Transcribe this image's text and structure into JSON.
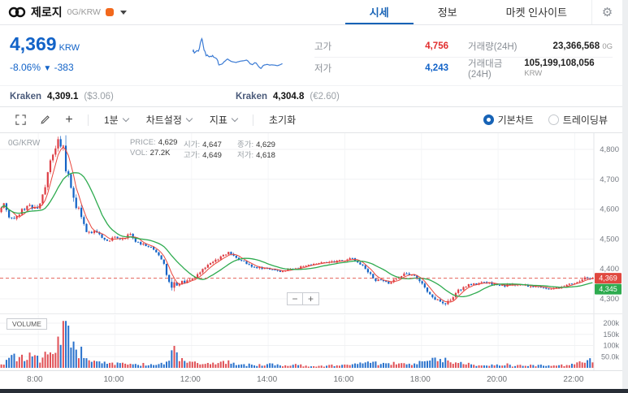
{
  "header": {
    "title": "제로지",
    "pair": "0G/KRW",
    "tabs": [
      {
        "label": "시세",
        "active": true
      },
      {
        "label": "정보",
        "active": false
      },
      {
        "label": "마켓 인사이트",
        "active": false
      }
    ]
  },
  "quote": {
    "price": "4,369",
    "currency": "KRW",
    "change_pct": "-8.06%",
    "change_dir": "▼",
    "change_abs": "-383",
    "stats": {
      "high_label": "고가",
      "high": "4,756",
      "low_label": "저가",
      "low": "4,243",
      "vol_label": "거래량(24H)",
      "vol": "23,366,568",
      "vol_unit": "0G",
      "amount_label": "거래대금(24H)",
      "amount": "105,199,108,056",
      "amount_unit": "KRW"
    },
    "references": [
      {
        "exchange": "Kraken",
        "price": "4,309.1",
        "note": "($3.06)"
      },
      {
        "exchange": "Kraken",
        "price": "4,304.8",
        "note": "(€2.60)"
      }
    ]
  },
  "toolbar": {
    "interval": "1분",
    "settings": "차트설정",
    "indicator": "지표",
    "reset": "초기화",
    "radio_basic": "기본차트",
    "radio_tradingview": "트레이딩뷰"
  },
  "chart": {
    "symbol": "0G/KRW",
    "legend": [
      {
        "label": "PRICE:",
        "value": "4,629"
      },
      {
        "label": "시가:",
        "value": "4,647"
      },
      {
        "label": "종가:",
        "value": "4,629"
      },
      {
        "label": "VOL:",
        "value": "27.2K"
      },
      {
        "label": "고가:",
        "value": "4,649"
      },
      {
        "label": "저가:",
        "value": "4,618"
      }
    ],
    "volume_title": "VOLUME",
    "price_tag": "4,369",
    "ma_tag": "4,345",
    "zoom_out": "−",
    "zoom_in": "+"
  },
  "colors": {
    "accent_blue": "#1763b6",
    "price_blue": "#1263c8",
    "high_red": "#e12d2d"
  },
  "chart_data": {
    "type": "candlestick",
    "pair": "0G/KRW",
    "interval": "1분",
    "last_price": 4369,
    "minutes_total": 930,
    "candle_count": 230,
    "seed": 42,
    "colors": {
      "up": "#dd3d44",
      "down": "#1363c6",
      "ma_fast": "#e8453c",
      "ma_slow": "#2eab4f"
    },
    "y_ticks": [
      {
        "label": "4,800",
        "value": 4800
      },
      {
        "label": "4,700",
        "value": 4700
      },
      {
        "label": "4,600",
        "value": 4600
      },
      {
        "label": "4,500",
        "value": 4500
      },
      {
        "label": "4,400",
        "value": 4400
      },
      {
        "label": "4,300",
        "value": 4300
      }
    ],
    "x_ticks": [
      {
        "label": "8:00",
        "minute": 60
      },
      {
        "label": "10:00",
        "minute": 180
      },
      {
        "label": "12:00",
        "minute": 300
      },
      {
        "label": "14:00",
        "minute": 420
      },
      {
        "label": "16:00",
        "minute": 540
      },
      {
        "label": "18:00",
        "minute": 660
      },
      {
        "label": "20:00",
        "minute": 780
      },
      {
        "label": "22:00",
        "minute": 900
      }
    ],
    "volume_ticks": [
      {
        "label": "200k",
        "value": 200000
      },
      {
        "label": "150k",
        "value": 150000
      },
      {
        "label": "100k",
        "value": 100000
      },
      {
        "label": "50.0k",
        "value": 50000
      }
    ],
    "price_waypoints": [
      [
        0,
        4590
      ],
      [
        8,
        4620
      ],
      [
        18,
        4565
      ],
      [
        30,
        4585
      ],
      [
        45,
        4610
      ],
      [
        60,
        4600
      ],
      [
        70,
        4650
      ],
      [
        80,
        4750
      ],
      [
        88,
        4800
      ],
      [
        95,
        4830
      ],
      [
        100,
        4805
      ],
      [
        104,
        4760
      ],
      [
        110,
        4700
      ],
      [
        118,
        4620
      ],
      [
        126,
        4600
      ],
      [
        133,
        4560
      ],
      [
        139,
        4515
      ],
      [
        151,
        4530
      ],
      [
        162,
        4505
      ],
      [
        172,
        4495
      ],
      [
        182,
        4505
      ],
      [
        195,
        4500
      ],
      [
        205,
        4520
      ],
      [
        215,
        4490
      ],
      [
        228,
        4480
      ],
      [
        240,
        4470
      ],
      [
        250,
        4450
      ],
      [
        258,
        4420
      ],
      [
        264,
        4370
      ],
      [
        270,
        4345
      ],
      [
        278,
        4350
      ],
      [
        290,
        4355
      ],
      [
        300,
        4360
      ],
      [
        310,
        4375
      ],
      [
        323,
        4405
      ],
      [
        335,
        4420
      ],
      [
        349,
        4445
      ],
      [
        360,
        4455
      ],
      [
        368,
        4440
      ],
      [
        378,
        4430
      ],
      [
        390,
        4415
      ],
      [
        405,
        4405
      ],
      [
        420,
        4400
      ],
      [
        435,
        4395
      ],
      [
        445,
        4390
      ],
      [
        457,
        4400
      ],
      [
        470,
        4405
      ],
      [
        489,
        4415
      ],
      [
        510,
        4420
      ],
      [
        530,
        4425
      ],
      [
        540,
        4430
      ],
      [
        552,
        4435
      ],
      [
        565,
        4420
      ],
      [
        577,
        4395
      ],
      [
        590,
        4365
      ],
      [
        600,
        4360
      ],
      [
        612,
        4350
      ],
      [
        622,
        4365
      ],
      [
        635,
        4385
      ],
      [
        650,
        4380
      ],
      [
        666,
        4340
      ],
      [
        678,
        4310
      ],
      [
        692,
        4290
      ],
      [
        700,
        4282
      ],
      [
        708,
        4300
      ],
      [
        720,
        4330
      ],
      [
        735,
        4345
      ],
      [
        750,
        4350
      ],
      [
        762,
        4355
      ],
      [
        775,
        4350
      ],
      [
        790,
        4342
      ],
      [
        805,
        4348
      ],
      [
        820,
        4345
      ],
      [
        838,
        4342
      ],
      [
        852,
        4338
      ],
      [
        865,
        4332
      ],
      [
        878,
        4338
      ],
      [
        890,
        4345
      ],
      [
        900,
        4352
      ],
      [
        908,
        4362
      ],
      [
        918,
        4369
      ]
    ],
    "volume_waypoints": [
      [
        0,
        14000
      ],
      [
        10,
        30000
      ],
      [
        18,
        55000
      ],
      [
        25,
        35000
      ],
      [
        32,
        60000
      ],
      [
        40,
        45000
      ],
      [
        48,
        65000
      ],
      [
        55,
        40000
      ],
      [
        62,
        35000
      ],
      [
        70,
        55000
      ],
      [
        80,
        70000
      ],
      [
        88,
        90000
      ],
      [
        95,
        140000
      ],
      [
        100,
        225000
      ],
      [
        105,
        160000
      ],
      [
        112,
        110000
      ],
      [
        120,
        80000
      ],
      [
        130,
        60000
      ],
      [
        140,
        40000
      ],
      [
        152,
        30000
      ],
      [
        165,
        22000
      ],
      [
        180,
        18000
      ],
      [
        200,
        14000
      ],
      [
        220,
        16000
      ],
      [
        240,
        12000
      ],
      [
        258,
        25000
      ],
      [
        264,
        60000
      ],
      [
        270,
        90000
      ],
      [
        280,
        45000
      ],
      [
        292,
        30000
      ],
      [
        300,
        25000
      ],
      [
        312,
        18000
      ],
      [
        325,
        20000
      ],
      [
        340,
        22000
      ],
      [
        352,
        28000
      ],
      [
        365,
        20000
      ],
      [
        380,
        14000
      ],
      [
        400,
        12000
      ],
      [
        420,
        15000
      ],
      [
        440,
        10000
      ],
      [
        457,
        14000
      ],
      [
        475,
        10000
      ],
      [
        495,
        9000
      ],
      [
        515,
        10000
      ],
      [
        535,
        12000
      ],
      [
        552,
        14000
      ],
      [
        568,
        18000
      ],
      [
        582,
        22000
      ],
      [
        597,
        18000
      ],
      [
        612,
        20000
      ],
      [
        628,
        15000
      ],
      [
        645,
        12000
      ],
      [
        662,
        30000
      ],
      [
        676,
        40000
      ],
      [
        690,
        35000
      ],
      [
        703,
        28000
      ],
      [
        718,
        20000
      ],
      [
        735,
        16000
      ],
      [
        752,
        12000
      ],
      [
        768,
        14000
      ],
      [
        785,
        18000
      ],
      [
        800,
        10000
      ],
      [
        815,
        12000
      ],
      [
        832,
        10000
      ],
      [
        848,
        13000
      ],
      [
        862,
        9000
      ],
      [
        878,
        11000
      ],
      [
        892,
        14000
      ],
      [
        904,
        22000
      ],
      [
        918,
        30000
      ]
    ]
  }
}
